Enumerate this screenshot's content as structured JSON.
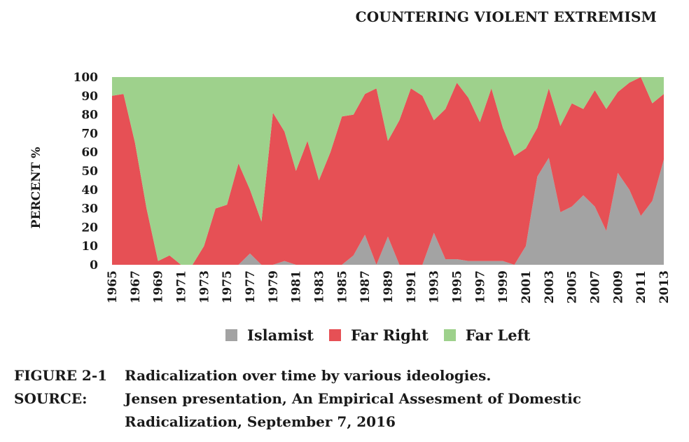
{
  "running_head": "COUNTERING VIOLENT EXTREMISM",
  "caption": {
    "figure_label": "FIGURE 2-1",
    "figure_text": "Radicalization over time by various ideologies.",
    "source_label": "SOURCE:",
    "source_line1": "Jensen presentation, An Empirical Assesment of Domestic",
    "source_line2": "Radicalization, September 7, 2016"
  },
  "colors": {
    "islamist": "#a3a3a3",
    "far_right": "#e65055",
    "far_left": "#9ed18c"
  },
  "chart_data": {
    "type": "area",
    "stacked": true,
    "ylabel": "PERCENT %",
    "ylim": [
      0,
      100
    ],
    "yticks": [
      0,
      10,
      20,
      30,
      40,
      50,
      60,
      70,
      80,
      90,
      100
    ],
    "xlim": [
      1965,
      2013
    ],
    "xticks": [
      1965,
      1967,
      1969,
      1971,
      1973,
      1975,
      1977,
      1979,
      1981,
      1983,
      1985,
      1987,
      1989,
      1991,
      1993,
      1995,
      1997,
      1999,
      2001,
      2003,
      2005,
      2007,
      2009,
      2011,
      2013
    ],
    "legend_position": "bottom",
    "x": [
      1965,
      1966,
      1967,
      1968,
      1969,
      1970,
      1971,
      1972,
      1973,
      1974,
      1975,
      1976,
      1977,
      1978,
      1979,
      1980,
      1981,
      1982,
      1983,
      1984,
      1985,
      1986,
      1987,
      1988,
      1989,
      1990,
      1991,
      1992,
      1993,
      1994,
      1995,
      1996,
      1997,
      1998,
      1999,
      2000,
      2001,
      2002,
      2003,
      2004,
      2005,
      2006,
      2007,
      2008,
      2009,
      2010,
      2011,
      2012,
      2013
    ],
    "series": [
      {
        "name": "Islamist",
        "values": [
          0,
          0,
          0,
          0,
          0,
          0,
          0,
          0,
          0,
          0,
          0,
          0,
          6,
          0,
          0,
          2,
          0,
          0,
          0,
          0,
          0,
          5,
          16,
          0,
          15,
          0,
          0,
          0,
          17,
          3,
          3,
          2,
          2,
          2,
          2,
          0,
          10,
          47,
          57,
          28,
          31,
          37,
          31,
          18,
          49,
          40,
          26,
          34,
          56
        ]
      },
      {
        "name": "Far Right",
        "values": [
          90,
          91,
          65,
          30,
          2,
          5,
          0,
          0,
          10,
          30,
          32,
          54,
          34,
          23,
          81,
          69,
          50,
          66,
          45,
          60,
          79,
          75,
          75,
          94,
          51,
          77,
          94,
          90,
          60,
          80,
          94,
          87,
          74,
          92,
          71,
          58,
          52,
          26,
          37,
          46,
          55,
          46,
          62,
          65,
          43,
          57,
          74,
          52,
          35
        ]
      },
      {
        "name": "Far Left",
        "values": [
          10,
          9,
          35,
          70,
          98,
          95,
          100,
          100,
          90,
          70,
          68,
          46,
          60,
          77,
          19,
          29,
          50,
          34,
          55,
          40,
          21,
          20,
          9,
          6,
          34,
          23,
          6,
          10,
          23,
          17,
          3,
          11,
          24,
          6,
          27,
          42,
          38,
          27,
          6,
          26,
          14,
          17,
          7,
          17,
          8,
          3,
          0,
          14,
          9
        ]
      }
    ]
  }
}
